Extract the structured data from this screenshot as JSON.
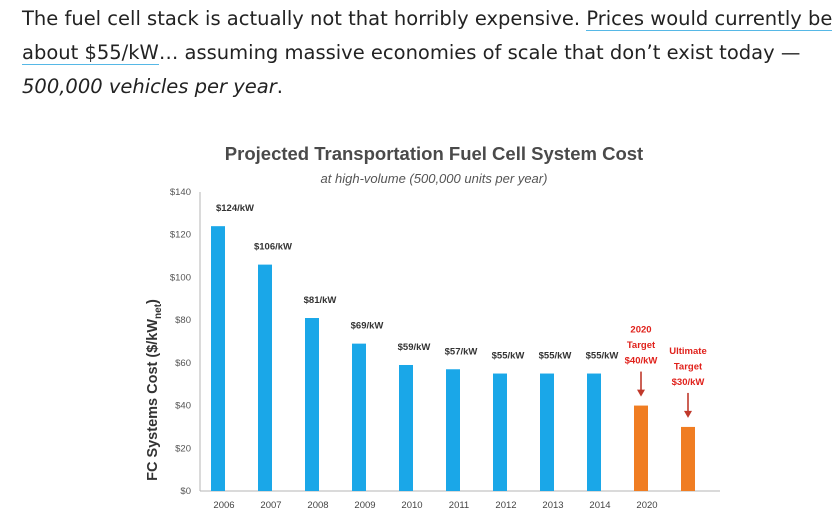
{
  "article": {
    "text_before_link": "The fuel cell stack is actually not that horribly expensive. ",
    "link_text": "Prices would currently be about $55/kW",
    "text_after_link": "… assuming massive economies of scale that don’t exist today — ",
    "emphasis": "500,000 vehicles per year",
    "text_end": "."
  },
  "chart_data": {
    "type": "bar",
    "title": "Projected Transportation Fuel Cell System Cost",
    "subtitle": "at high-volume (500,000 units per year)",
    "xlabel": "",
    "ylabel_main": "FC Systems Cost ($/kW",
    "ylabel_sub": "net",
    "ylabel_close": ")",
    "ylim": [
      0,
      140
    ],
    "yticks": [
      0,
      20,
      40,
      60,
      80,
      100,
      120,
      140
    ],
    "ytick_labels": [
      "$0",
      "$20",
      "$40",
      "$60",
      "$80",
      "$100",
      "$120",
      "$140"
    ],
    "grid": false,
    "bars": [
      {
        "value": 124,
        "label": "$124/kW",
        "color": "#1aa7e8"
      },
      {
        "value": 106,
        "label": "$106/kW",
        "color": "#1aa7e8"
      },
      {
        "value": 81,
        "label": "$81/kW",
        "color": "#1aa7e8"
      },
      {
        "value": 69,
        "label": "$69/kW",
        "color": "#1aa7e8"
      },
      {
        "value": 59,
        "label": "$59/kW",
        "color": "#1aa7e8"
      },
      {
        "value": 57,
        "label": "$57/kW",
        "color": "#1aa7e8"
      },
      {
        "value": 55,
        "label": "$55/kW",
        "color": "#1aa7e8"
      },
      {
        "value": 55,
        "label": "$55/kW",
        "color": "#1aa7e8"
      },
      {
        "value": 55,
        "label": "$55/kW",
        "color": "#1aa7e8"
      },
      {
        "value": 40,
        "label_lines": [
          "2020",
          "Target",
          "$40/kW"
        ],
        "color": "#f07d22",
        "label_color": "#e0211b",
        "arrow": true
      },
      {
        "value": 30,
        "label_lines": [
          "Ultimate",
          "Target",
          "$30/kW"
        ],
        "color": "#f07d22",
        "label_color": "#e0211b",
        "arrow": true
      }
    ],
    "xtick_labels": [
      "2006",
      "2007",
      "2008",
      "2009",
      "2010",
      "2011",
      "2012",
      "2013",
      "2014",
      "2020",
      ""
    ],
    "colors": {
      "current": "#1aa7e8",
      "target": "#f07d22",
      "target_text": "#e0211b"
    }
  }
}
